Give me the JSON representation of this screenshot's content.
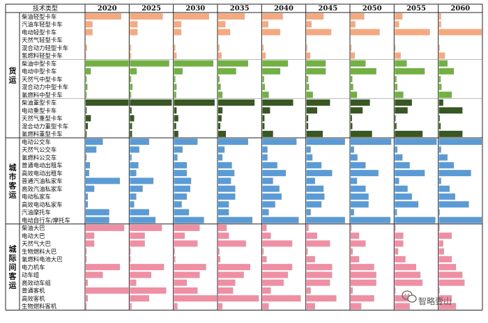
{
  "watermark": {
    "icon": "wechat-icon",
    "text": "智略壹山"
  },
  "chart_data": {
    "type": "bar",
    "header": "技术类型",
    "years": [
      "2020",
      "2025",
      "2030",
      "2035",
      "2040",
      "2045",
      "2050",
      "2055",
      "2060"
    ],
    "groups": [
      {
        "name": "货运",
        "color": "#f5a981",
        "rows": [
          {
            "label": "柴油轻型卡车",
            "values": [
              0.83,
              0.77,
              0.82,
              0.62,
              0.48,
              0.4,
              0.32,
              0.18,
              0.05
            ]
          },
          {
            "label": "汽油车轻型卡车",
            "values": [
              0.16,
              0.18,
              0.17,
              0.17,
              0.14,
              0.12,
              0.11,
              0.1,
              0.05
            ]
          },
          {
            "label": "电动轻型卡车",
            "values": [
              0.16,
              0.18,
              0.17,
              0.28,
              0.42,
              0.58,
              0.68,
              0.82,
              1.0
            ]
          },
          {
            "label": "天然气轻型卡车",
            "values": [
              0,
              0,
              0,
              0,
              0,
              0,
              0,
              0,
              0
            ]
          },
          {
            "label": "混合动力轻型卡车",
            "values": [
              0.03,
              0.03,
              0.03,
              0.03,
              0.03,
              0.02,
              0.02,
              0.02,
              0.02
            ]
          },
          {
            "label": "氢燃料轻型卡车",
            "values": [
              0.01,
              0.03,
              0.06,
              0.08,
              0.08,
              0.09,
              0.1,
              0.14,
              0.14
            ]
          }
        ]
      },
      {
        "name": "货运",
        "color": "#72b043",
        "rows": [
          {
            "label": "柴油中型卡车",
            "values": [
              1.0,
              0.92,
              0.92,
              0.7,
              0.6,
              0.45,
              0.35,
              0.28,
              0.2
            ]
          },
          {
            "label": "电动中型卡车",
            "values": [
              0.12,
              0.16,
              0.2,
              0.42,
              0.42,
              0.45,
              0.6,
              0.7,
              0.35
            ]
          },
          {
            "label": "天然气中型卡车",
            "values": [
              0.02,
              0.03,
              0.03,
              0.03,
              0.04,
              0.04,
              0.04,
              0.04,
              0.04
            ]
          },
          {
            "label": "混合动力中型卡车",
            "values": [
              0.04,
              0.06,
              0.06,
              0.06,
              0.06,
              0.06,
              0.06,
              0.06,
              0.06
            ]
          },
          {
            "label": "氢燃料中型卡车",
            "values": [
              0.02,
              0.03,
              0.05,
              0.1,
              0.15,
              0.15,
              0.15,
              0.2,
              0.3
            ]
          }
        ]
      },
      {
        "name": "货运",
        "color": "#385723",
        "rows": [
          {
            "label": "柴油重型卡车",
            "values": [
              1.0,
              0.98,
              0.95,
              0.85,
              0.72,
              0.55,
              0.45,
              0.4,
              0.1
            ]
          },
          {
            "label": "电动重型卡车",
            "values": [
              0.02,
              0.04,
              0.06,
              0.1,
              0.18,
              0.25,
              0.28,
              0.3,
              0.55
            ]
          },
          {
            "label": "天然气重型卡车",
            "values": [
              0.12,
              0.1,
              0.1,
              0.08,
              0.05,
              0.04,
              0.03,
              0.02,
              0.02
            ]
          },
          {
            "label": "混合动力重型卡车",
            "values": [
              0.05,
              0.05,
              0.05,
              0.05,
              0.05,
              0.04,
              0.04,
              0.04,
              0.04
            ]
          },
          {
            "label": "氢燃料重型卡车",
            "values": [
              0.02,
              0.05,
              0.1,
              0.18,
              0.25,
              0.38,
              0.5,
              0.65,
              0.55
            ]
          }
        ]
      },
      {
        "name": "城市客运",
        "color": "#5b9bd5",
        "rows": [
          {
            "label": "电动公交车",
            "values": [
              0.4,
              0.45,
              0.55,
              0.7,
              0.8,
              0.9,
              0.95,
              0.98,
              1.0
            ]
          },
          {
            "label": "天然气公交车",
            "values": [
              0.25,
              0.22,
              0.2,
              0.15,
              0.12,
              0.1,
              0.08,
              0.06,
              0.05
            ]
          },
          {
            "label": "氢燃料公交车",
            "values": [
              0.02,
              0.04,
              0.08,
              0.1,
              0.12,
              0.14,
              0.16,
              0.18,
              0.2
            ]
          },
          {
            "label": "普通电动出租车",
            "values": [
              0.1,
              0.2,
              0.3,
              0.32,
              0.35,
              0.35,
              0.35,
              0.35,
              0.35
            ]
          },
          {
            "label": "高效电动出租车",
            "values": [
              0.08,
              0.15,
              0.3,
              0.38,
              0.55,
              0.6,
              0.65,
              0.7,
              0.75
            ]
          },
          {
            "label": "普通汽油私家车",
            "values": [
              0.8,
              0.55,
              0.4,
              0.3,
              0.25,
              0.2,
              0.15,
              0.1,
              0.05
            ]
          },
          {
            "label": "高效汽油私家车",
            "values": [
              0.2,
              0.3,
              0.38,
              0.4,
              0.4,
              0.4,
              0.35,
              0.3,
              0.25
            ]
          },
          {
            "label": "电动私家车",
            "values": [
              0.05,
              0.15,
              0.3,
              0.4,
              0.45,
              0.42,
              0.42,
              0.4,
              0.38
            ]
          },
          {
            "label": "高效电动私家车",
            "values": [
              0.05,
              0.1,
              0.18,
              0.25,
              0.3,
              0.35,
              0.42,
              0.55,
              0.7
            ]
          },
          {
            "label": "汽油摩托车",
            "values": [
              0.55,
              0.45,
              0.35,
              0.25,
              0.15,
              0.1,
              0.08,
              0.05,
              0.02
            ]
          },
          {
            "label": "电动自行车/摩托车",
            "values": [
              0.55,
              0.6,
              0.7,
              0.8,
              0.85,
              0.9,
              0.93,
              0.95,
              1.0
            ]
          }
        ]
      },
      {
        "name": "城际间客运",
        "color": "#ef8fa4",
        "rows": [
          {
            "label": "柴油大巴",
            "values": [
              0.9,
              0.75,
              0.6,
              0.2,
              0.1,
              0.05,
              0.02,
              0.02,
              0.02
            ]
          },
          {
            "label": "电动大巴",
            "values": [
              0.2,
              0.35,
              0.25,
              0.25,
              0.2,
              0.25,
              0.2,
              0.2,
              0.3
            ]
          },
          {
            "label": "天然气大巴",
            "values": [
              0.2,
              0.35,
              0.55,
              0.65,
              0.7,
              0.55,
              0.35,
              0.2,
              0.1
            ]
          },
          {
            "label": "生物燃料大巴",
            "values": [
              0.02,
              0.02,
              0.02,
              0.03,
              0.03,
              0.03,
              0.05,
              0.08,
              0.12
            ]
          },
          {
            "label": "氢燃料电池大巴",
            "values": [
              0.02,
              0.02,
              0.03,
              0.05,
              0.1,
              0.2,
              0.2,
              0.25,
              0.3
            ]
          },
          {
            "label": "电力机车",
            "values": [
              0.8,
              0.8,
              0.75,
              0.75,
              0.7,
              0.6,
              0.55,
              0.5,
              0.4
            ]
          },
          {
            "label": "动车组",
            "values": [
              0.4,
              0.5,
              0.6,
              0.6,
              0.6,
              0.6,
              0.6,
              0.6,
              0.55
            ]
          },
          {
            "label": "高效动车组",
            "values": [
              0.05,
              0.15,
              0.3,
              0.4,
              0.5,
              0.55,
              0.6,
              0.65,
              0.6
            ]
          },
          {
            "label": "普通客机",
            "values": [
              1.0,
              0.85,
              0.55,
              0.35,
              0.2,
              0.1,
              0.05,
              0.02,
              0.02
            ]
          },
          {
            "label": "高效客机",
            "values": [
              0.05,
              0.45,
              1.0,
              0.95,
              0.9,
              0.7,
              0.55,
              0.4,
              0.3
            ]
          },
          {
            "label": "生物燃料客机",
            "values": [
              0.02,
              0.04,
              0.08,
              0.1,
              0.15,
              0.2,
              0.25,
              0.35,
              0.4
            ]
          }
        ]
      }
    ]
  }
}
